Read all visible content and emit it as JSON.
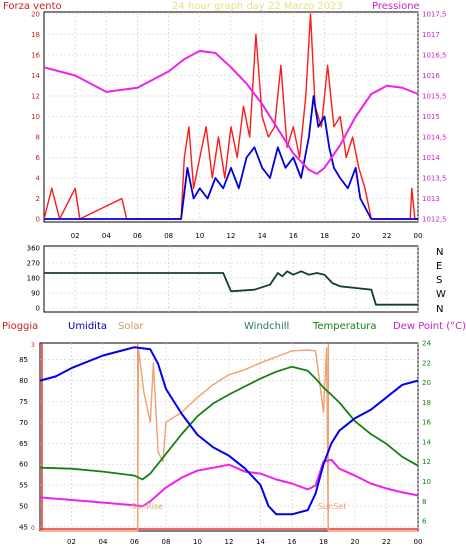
{
  "top_header": {
    "left_title": "Forza vento",
    "center_title": "24 hour graph day   22 Marzo 2023",
    "right_title": "Pressione"
  },
  "bottom_header": {
    "pioggia": "Pioggia",
    "umidita": "Umidita",
    "solar": "Solar",
    "windchill": "Windchill",
    "temperatura": "Temperatura",
    "dewpoint": "Dew Point (°C)"
  },
  "annotations": {
    "sunrise": "SunRise",
    "sunset": "SunSet"
  },
  "colors": {
    "wind_gust": "#ff1a1a",
    "wind_avg": "#0000dd",
    "pressure": "#ee22ee",
    "wind_dir": "#104030",
    "humidity": "#0000ee",
    "solar": "#f0a070",
    "temperature": "#158015",
    "dewpoint": "#ee22ee",
    "right_axis": "#cc22cc",
    "left_axis_bottom": "#cc2222",
    "sun_line": "#e08040",
    "rain_line": "#ee3333"
  },
  "chart_data": [
    {
      "type": "line",
      "name": "wind-pressure",
      "x_ticks": [
        "02",
        "04",
        "06",
        "08",
        "10",
        "12",
        "14",
        "16",
        "18",
        "20",
        "22",
        "00"
      ],
      "y_left_ticks": [
        "0",
        "2",
        "4",
        "6",
        "8",
        "10",
        "12",
        "14",
        "16",
        "18",
        "20"
      ],
      "y_left_range": [
        0,
        20
      ],
      "y_right_ticks": [
        "1012,5",
        "1013",
        "1013,5",
        "1014",
        "1014,5",
        "1015",
        "1015,5",
        "1016",
        "1016,5",
        "1017",
        "1017,5"
      ],
      "y_right_range": [
        1012.5,
        1017.5
      ],
      "pressure": [
        [
          0,
          1016.2
        ],
        [
          2,
          1016.0
        ],
        [
          4,
          1015.6
        ],
        [
          6,
          1015.7
        ],
        [
          8,
          1016.1
        ],
        [
          9,
          1016.4
        ],
        [
          10,
          1016.6
        ],
        [
          11,
          1016.55
        ],
        [
          12,
          1016.2
        ],
        [
          13,
          1015.8
        ],
        [
          14,
          1015.3
        ],
        [
          15,
          1014.7
        ],
        [
          16,
          1014.1
        ],
        [
          17,
          1013.7
        ],
        [
          17.5,
          1013.6
        ],
        [
          18,
          1013.75
        ],
        [
          19,
          1014.3
        ],
        [
          20,
          1015.0
        ],
        [
          21,
          1015.55
        ],
        [
          22,
          1015.75
        ],
        [
          23,
          1015.7
        ],
        [
          24,
          1015.55
        ]
      ],
      "wind_avg": [
        [
          0,
          0
        ],
        [
          8.8,
          0
        ],
        [
          9.2,
          5
        ],
        [
          9.6,
          2
        ],
        [
          10,
          3
        ],
        [
          10.5,
          2
        ],
        [
          11,
          4
        ],
        [
          11.5,
          3
        ],
        [
          12,
          5
        ],
        [
          12.5,
          3
        ],
        [
          13,
          6
        ],
        [
          13.5,
          7
        ],
        [
          14,
          5
        ],
        [
          14.5,
          4
        ],
        [
          15,
          7
        ],
        [
          15.5,
          5
        ],
        [
          16,
          6
        ],
        [
          16.5,
          4
        ],
        [
          17,
          8
        ],
        [
          17.3,
          12
        ],
        [
          17.6,
          9
        ],
        [
          18,
          10
        ],
        [
          18.3,
          7
        ],
        [
          18.6,
          5
        ],
        [
          19,
          4
        ],
        [
          19.5,
          3
        ],
        [
          20,
          5
        ],
        [
          20.3,
          2
        ],
        [
          21,
          0
        ],
        [
          24,
          0
        ]
      ],
      "wind_gust": [
        [
          0,
          0
        ],
        [
          0.5,
          3
        ],
        [
          1,
          0
        ],
        [
          2,
          3
        ],
        [
          2.3,
          0
        ],
        [
          5,
          2
        ],
        [
          5.3,
          0
        ],
        [
          8.8,
          0
        ],
        [
          9,
          6
        ],
        [
          9.3,
          9
        ],
        [
          9.6,
          3
        ],
        [
          10,
          6
        ],
        [
          10.4,
          9
        ],
        [
          10.8,
          4
        ],
        [
          11.2,
          8
        ],
        [
          11.6,
          4
        ],
        [
          12,
          9
        ],
        [
          12.4,
          6
        ],
        [
          12.8,
          11
        ],
        [
          13.2,
          8
        ],
        [
          13.6,
          18
        ],
        [
          14,
          10
        ],
        [
          14.4,
          8
        ],
        [
          14.8,
          9
        ],
        [
          15.2,
          15
        ],
        [
          15.6,
          7
        ],
        [
          16,
          9
        ],
        [
          16.4,
          6
        ],
        [
          16.8,
          12
        ],
        [
          17.1,
          20
        ],
        [
          17.4,
          11
        ],
        [
          17.8,
          9
        ],
        [
          18.2,
          15
        ],
        [
          18.6,
          9
        ],
        [
          19,
          10
        ],
        [
          19.4,
          6
        ],
        [
          19.8,
          8
        ],
        [
          20.2,
          5
        ],
        [
          20.6,
          3
        ],
        [
          21,
          0
        ],
        [
          23.5,
          0
        ],
        [
          23.6,
          3
        ],
        [
          23.8,
          0
        ],
        [
          24,
          0
        ]
      ]
    },
    {
      "type": "line",
      "name": "wind-direction",
      "y_left_ticks": [
        "0",
        "90",
        "180",
        "270",
        "360"
      ],
      "y_left_range": [
        0,
        360
      ],
      "y_right_labels": [
        "N",
        "W",
        "S",
        "E",
        "N"
      ],
      "values": [
        [
          0,
          210
        ],
        [
          11.5,
          210
        ],
        [
          12,
          100
        ],
        [
          13.5,
          110
        ],
        [
          14.5,
          140
        ],
        [
          15,
          210
        ],
        [
          15.3,
          190
        ],
        [
          15.6,
          220
        ],
        [
          16,
          200
        ],
        [
          16.5,
          220
        ],
        [
          17,
          200
        ],
        [
          17.5,
          210
        ],
        [
          18,
          200
        ],
        [
          18.5,
          150
        ],
        [
          19,
          130
        ],
        [
          20,
          120
        ],
        [
          21,
          110
        ],
        [
          21.3,
          20
        ],
        [
          24,
          20
        ]
      ]
    },
    {
      "type": "line",
      "name": "humidity-temperature",
      "x_ticks": [
        "02",
        "04",
        "06",
        "08",
        "10",
        "12",
        "14",
        "16",
        "18",
        "20",
        "22",
        "00"
      ],
      "y_left_ticks": [
        "45",
        "50",
        "55",
        "60",
        "65",
        "70",
        "75",
        "80",
        "85"
      ],
      "y_left_range": [
        44,
        89
      ],
      "y_right_ticks": [
        "6",
        "8",
        "10",
        "12",
        "14",
        "16",
        "18",
        "20",
        "22",
        "24"
      ],
      "y_right_range": [
        5,
        24
      ],
      "humidity": [
        [
          0,
          80
        ],
        [
          1,
          81
        ],
        [
          2,
          83
        ],
        [
          4,
          86
        ],
        [
          6,
          88
        ],
        [
          7,
          87.5
        ],
        [
          7.5,
          84
        ],
        [
          8,
          78
        ],
        [
          9,
          72
        ],
        [
          10,
          67
        ],
        [
          11,
          64
        ],
        [
          12,
          62
        ],
        [
          13,
          59
        ],
        [
          14,
          55
        ],
        [
          14.5,
          50
        ],
        [
          15,
          48
        ],
        [
          16,
          48
        ],
        [
          17,
          49
        ],
        [
          17.5,
          53
        ],
        [
          18,
          60
        ],
        [
          18.5,
          65
        ],
        [
          19,
          68
        ],
        [
          20,
          71
        ],
        [
          21,
          73
        ],
        [
          22,
          76
        ],
        [
          23,
          79
        ],
        [
          24,
          80
        ]
      ],
      "temperature": [
        [
          0,
          11.4
        ],
        [
          2,
          11.3
        ],
        [
          4,
          11.0
        ],
        [
          6,
          10.6
        ],
        [
          6.5,
          10.2
        ],
        [
          7,
          10.8
        ],
        [
          8,
          12.8
        ],
        [
          9,
          14.8
        ],
        [
          10,
          16.6
        ],
        [
          11,
          17.9
        ],
        [
          12,
          18.8
        ],
        [
          13,
          19.6
        ],
        [
          14,
          20.4
        ],
        [
          15,
          21.1
        ],
        [
          16,
          21.6
        ],
        [
          17,
          21.2
        ],
        [
          17.5,
          20.4
        ],
        [
          18,
          19.5
        ],
        [
          19,
          18.0
        ],
        [
          20,
          16.1
        ],
        [
          21,
          14.8
        ],
        [
          22,
          13.8
        ],
        [
          23,
          12.5
        ],
        [
          24,
          11.6
        ]
      ],
      "dewpoint": [
        [
          0,
          8.4
        ],
        [
          3,
          8.0
        ],
        [
          6,
          7.6
        ],
        [
          6.5,
          7.5
        ],
        [
          7,
          8.0
        ],
        [
          8,
          9.4
        ],
        [
          9,
          10.4
        ],
        [
          10,
          11.1
        ],
        [
          11,
          11.4
        ],
        [
          12,
          11.7
        ],
        [
          13,
          11.0
        ],
        [
          14,
          10.8
        ],
        [
          15,
          10.2
        ],
        [
          16,
          9.8
        ],
        [
          17,
          9.2
        ],
        [
          17.5,
          9.6
        ],
        [
          18,
          12.0
        ],
        [
          18.5,
          12.2
        ],
        [
          19,
          11.3
        ],
        [
          20,
          10.6
        ],
        [
          21,
          9.8
        ],
        [
          22,
          9.3
        ],
        [
          23,
          8.9
        ],
        [
          24,
          8.6
        ]
      ],
      "solar_scale_range": [
        5,
        24
      ],
      "solar": [
        [
          0,
          5
        ],
        [
          6.2,
          5
        ],
        [
          6.25,
          23.5
        ],
        [
          6.6,
          19
        ],
        [
          7,
          16
        ],
        [
          7.2,
          22
        ],
        [
          7.5,
          13
        ],
        [
          7.8,
          12
        ],
        [
          8,
          16
        ],
        [
          9,
          17
        ],
        [
          10,
          18.5
        ],
        [
          11,
          19.8
        ],
        [
          12,
          20.8
        ],
        [
          13,
          21.3
        ],
        [
          14,
          22
        ],
        [
          15,
          22.6
        ],
        [
          16,
          23.2
        ],
        [
          17,
          23.3
        ],
        [
          17.5,
          23.2
        ],
        [
          18,
          17
        ],
        [
          18.2,
          23.5
        ],
        [
          18.3,
          5
        ],
        [
          24,
          5
        ]
      ],
      "sunrise_hour": 6.2,
      "sunset_hour": 18.3
    }
  ]
}
